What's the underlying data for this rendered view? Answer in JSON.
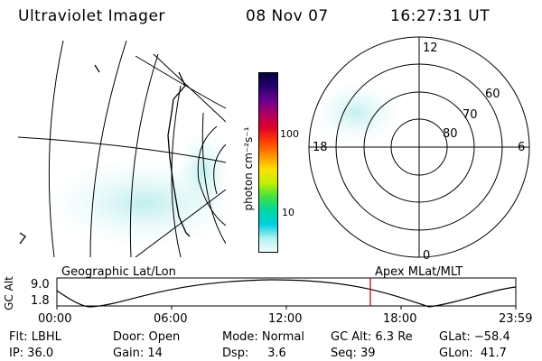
{
  "header": {
    "instrument": "Ultraviolet Imager",
    "date": "08 Nov 07",
    "time": "16:27:31 UT"
  },
  "colorbar": {
    "label": "photon cm⁻²s⁻¹",
    "ticks": [
      "100",
      "10"
    ],
    "stops": [
      "#000040",
      "#2a0070",
      "#6a0090",
      "#b00060",
      "#e0002a",
      "#ff4000",
      "#ff9000",
      "#ffe000",
      "#c0f000",
      "#40e040",
      "#00d8a0",
      "#00d0e0",
      "#b0f0f0",
      "#f0fcfc"
    ]
  },
  "polar_plot": {
    "labels": {
      "top": "12",
      "left": "18",
      "right": "6",
      "bottom": "0"
    },
    "rings": [
      "60",
      "70",
      "80"
    ]
  },
  "timeline": {
    "left_title": "Geographic Lat/Lon",
    "right_title": "Apex MLat/MLT",
    "axis_label": "GC Alt",
    "y_ticks": [
      "9.0",
      "1.8"
    ],
    "x_ticks": [
      "00:00",
      "06:00",
      "12:00",
      "18:00",
      "23:59"
    ],
    "marker_color": "#d00000"
  },
  "status": {
    "filter": "Flt: LBHL",
    "ip": "IP: 36.0",
    "door": "Door: Open",
    "gain": "Gain: 14",
    "mode": "Mode: Normal",
    "dsp": "Dsp:     3.6",
    "gc_alt": "GC Alt: 6.3 Re",
    "seq": "Seq: 39",
    "glat": "GLat: −58.4",
    "glon": "GLon:  41.7"
  }
}
